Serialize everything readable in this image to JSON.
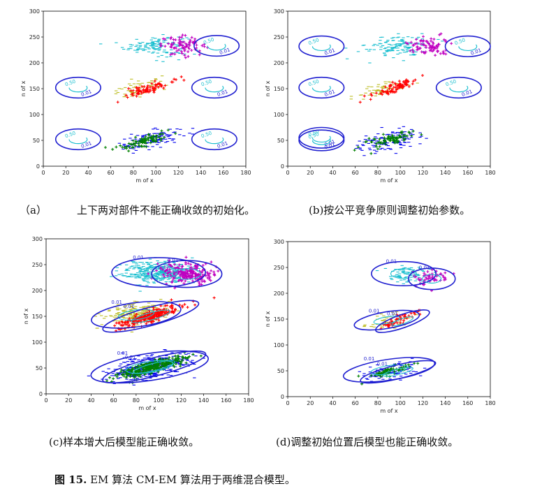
{
  "captions": {
    "a_label": "（a）",
    "a_text": "上下两对部件不能正确收敛的初始化。",
    "b_text": "(b)按公平竞争原则调整初始参数。",
    "c_text": "(c)样本增大后模型能正确收敛。",
    "d_text": "(d)调整初始位置后模型也能正确收敛。"
  },
  "figure_caption": {
    "number": "图 15.",
    "text": " EM 算法 CM-EM 算法用于两维混合模型。"
  },
  "colors": {
    "cyan": "#17becf",
    "magenta": "#c000c0",
    "yellow": "#bcbd22",
    "red": "#ff0000",
    "blue": "#0000ee",
    "green": "#008000",
    "contour_outer": "#1f1fd0",
    "contour_inner": "#20c0d0"
  },
  "chart_data": [
    {
      "id": "a",
      "type": "scatter",
      "xlabel": "m of x",
      "ylabel": "n of x",
      "xlim": [
        0,
        180
      ],
      "ylim": [
        0,
        300
      ],
      "xticks": [
        0,
        20,
        40,
        60,
        80,
        100,
        120,
        140,
        160,
        180
      ],
      "yticks": [
        0,
        50,
        100,
        150,
        200,
        250,
        300
      ],
      "clusters": [
        {
          "color": "cyan",
          "marker": "dash",
          "cx": 100,
          "cy": 233,
          "sx": 14,
          "sy": 10,
          "rho": 0.0,
          "n": 130
        },
        {
          "color": "magenta",
          "marker": "plus",
          "cx": 125,
          "cy": 233,
          "sx": 10,
          "sy": 9,
          "rho": 0.0,
          "n": 80
        },
        {
          "color": "yellow",
          "marker": "dash",
          "cx": 85,
          "cy": 150,
          "sx": 12,
          "sy": 9,
          "rho": 0.6,
          "n": 60
        },
        {
          "color": "red",
          "marker": "plus",
          "cx": 95,
          "cy": 152,
          "sx": 10,
          "sy": 9,
          "rho": 0.85,
          "n": 80
        },
        {
          "color": "blue",
          "marker": "dash",
          "cx": 95,
          "cy": 50,
          "sx": 14,
          "sy": 10,
          "rho": 0.5,
          "n": 130
        },
        {
          "color": "green",
          "marker": "plus",
          "cx": 90,
          "cy": 50,
          "sx": 12,
          "sy": 9,
          "rho": 0.8,
          "n": 80
        }
      ],
      "contours": [
        {
          "cx": 31,
          "cy": 152,
          "labels": [
            "0.50",
            "0.01"
          ]
        },
        {
          "cx": 31,
          "cy": 52,
          "labels": [
            "0.50",
            "0.01"
          ]
        },
        {
          "cx": 152,
          "cy": 152,
          "labels": [
            "0.50",
            "0.01"
          ]
        },
        {
          "cx": 152,
          "cy": 52,
          "labels": [
            "0.50",
            "0.01"
          ]
        },
        {
          "cx": 154,
          "cy": 233,
          "labels": [
            "0.50",
            "0.01"
          ]
        }
      ]
    },
    {
      "id": "b",
      "type": "scatter",
      "xlabel": "m of x",
      "ylabel": "n of x",
      "xlim": [
        0,
        180
      ],
      "ylim": [
        0,
        300
      ],
      "xticks": [
        0,
        20,
        40,
        60,
        80,
        100,
        120,
        140,
        160,
        180
      ],
      "yticks": [
        0,
        50,
        100,
        150,
        200,
        250,
        300
      ],
      "clusters": [
        {
          "color": "cyan",
          "marker": "dash",
          "cx": 98,
          "cy": 233,
          "sx": 14,
          "sy": 11,
          "rho": 0.0,
          "n": 130
        },
        {
          "color": "magenta",
          "marker": "plus",
          "cx": 125,
          "cy": 232,
          "sx": 9,
          "sy": 9,
          "rho": 0.0,
          "n": 80
        },
        {
          "color": "yellow",
          "marker": "dash",
          "cx": 83,
          "cy": 148,
          "sx": 12,
          "sy": 9,
          "rho": 0.6,
          "n": 60
        },
        {
          "color": "red",
          "marker": "plus",
          "cx": 95,
          "cy": 152,
          "sx": 10,
          "sy": 9,
          "rho": 0.85,
          "n": 80
        },
        {
          "color": "blue",
          "marker": "dash",
          "cx": 90,
          "cy": 50,
          "sx": 14,
          "sy": 10,
          "rho": 0.5,
          "n": 130
        },
        {
          "color": "green",
          "marker": "plus",
          "cx": 88,
          "cy": 50,
          "sx": 12,
          "sy": 9,
          "rho": 0.8,
          "n": 80
        }
      ],
      "contours": [
        {
          "cx": 30,
          "cy": 232,
          "labels": [
            "0.50",
            "0.01"
          ]
        },
        {
          "cx": 30,
          "cy": 152,
          "labels": [
            "0.50",
            "0.01"
          ]
        },
        {
          "cx": 152,
          "cy": 152,
          "labels": [
            "0.50",
            "0.01"
          ]
        },
        {
          "cx": 160,
          "cy": 232,
          "labels": [
            "0.50",
            "0.01"
          ]
        },
        {
          "cx": 30,
          "cy": 55,
          "labels": [
            "0.50",
            "0.01"
          ]
        },
        {
          "cx": 30,
          "cy": 50,
          "labels": [
            "0.50",
            "0.01"
          ]
        }
      ]
    },
    {
      "id": "c",
      "type": "scatter",
      "xlabel": "m of x",
      "ylabel": "n of x",
      "xlim": [
        0,
        180
      ],
      "ylim": [
        0,
        300
      ],
      "xticks": [
        0,
        20,
        40,
        60,
        80,
        100,
        120,
        140,
        160,
        180
      ],
      "yticks": [
        0,
        50,
        100,
        150,
        200,
        250,
        300
      ],
      "clusters": [
        {
          "color": "cyan",
          "marker": "dash",
          "cx": 100,
          "cy": 235,
          "sx": 16,
          "sy": 11,
          "rho": 0.0,
          "n": 340
        },
        {
          "color": "magenta",
          "marker": "plus",
          "cx": 125,
          "cy": 232,
          "sx": 12,
          "sy": 10,
          "rho": 0.0,
          "n": 220
        },
        {
          "color": "yellow",
          "marker": "dash",
          "cx": 78,
          "cy": 155,
          "sx": 14,
          "sy": 11,
          "rho": 0.4,
          "n": 200
        },
        {
          "color": "red",
          "marker": "plus",
          "cx": 92,
          "cy": 150,
          "sx": 14,
          "sy": 11,
          "rho": 0.85,
          "n": 240
        },
        {
          "color": "blue",
          "marker": "dash",
          "cx": 92,
          "cy": 52,
          "sx": 18,
          "sy": 13,
          "rho": 0.5,
          "n": 360
        },
        {
          "color": "green",
          "marker": "plus",
          "cx": 95,
          "cy": 52,
          "sx": 15,
          "sy": 11,
          "rho": 0.85,
          "n": 280
        }
      ],
      "contours": [
        {
          "cx": 100,
          "cy": 235,
          "labels": [
            "0.01"
          ]
        },
        {
          "cx": 125,
          "cy": 232,
          "labels": [
            "0.01"
          ]
        },
        {
          "cx": 80,
          "cy": 153,
          "labels": [
            "0.01"
          ]
        },
        {
          "cx": 93,
          "cy": 150,
          "labels": [
            "0.01"
          ]
        },
        {
          "cx": 92,
          "cy": 52,
          "labels": [
            "0.01"
          ]
        },
        {
          "cx": 96,
          "cy": 52,
          "labels": [
            "0.01"
          ]
        }
      ]
    },
    {
      "id": "d",
      "type": "scatter",
      "xlabel": "m of x",
      "ylabel": "n of x",
      "xlim": [
        0,
        180
      ],
      "ylim": [
        0,
        300
      ],
      "xticks": [
        0,
        20,
        40,
        60,
        80,
        100,
        120,
        140,
        160,
        180
      ],
      "yticks": [
        0,
        50,
        100,
        150,
        200,
        250,
        300
      ],
      "clusters": [
        {
          "color": "cyan",
          "marker": "dash",
          "cx": 105,
          "cy": 235,
          "sx": 11,
          "sy": 9,
          "rho": 0.0,
          "n": 80
        },
        {
          "color": "magenta",
          "marker": "plus",
          "cx": 127,
          "cy": 232,
          "sx": 8,
          "sy": 8,
          "rho": 0.0,
          "n": 55
        },
        {
          "color": "yellow",
          "marker": "dash",
          "cx": 88,
          "cy": 145,
          "sx": 10,
          "sy": 8,
          "rho": 0.5,
          "n": 45
        },
        {
          "color": "red",
          "marker": "plus",
          "cx": 98,
          "cy": 148,
          "sx": 8,
          "sy": 8,
          "rho": 0.85,
          "n": 55
        },
        {
          "color": "blue",
          "marker": "dash",
          "cx": 92,
          "cy": 48,
          "sx": 14,
          "sy": 10,
          "rho": 0.5,
          "n": 80
        },
        {
          "color": "green",
          "marker": "plus",
          "cx": 90,
          "cy": 48,
          "sx": 11,
          "sy": 8,
          "rho": 0.8,
          "n": 60
        }
      ],
      "contours": [
        {
          "cx": 103,
          "cy": 238,
          "labels": [
            "0.01"
          ]
        },
        {
          "cx": 128,
          "cy": 228,
          "labels": [
            "0.01"
          ]
        },
        {
          "cx": 88,
          "cy": 148,
          "labels": [
            "0.01"
          ]
        },
        {
          "cx": 102,
          "cy": 146,
          "labels": [
            "0.01"
          ]
        },
        {
          "cx": 90,
          "cy": 52,
          "labels": [
            "0.01"
          ]
        },
        {
          "cx": 98,
          "cy": 48,
          "labels": [
            "0.01"
          ]
        }
      ]
    }
  ]
}
